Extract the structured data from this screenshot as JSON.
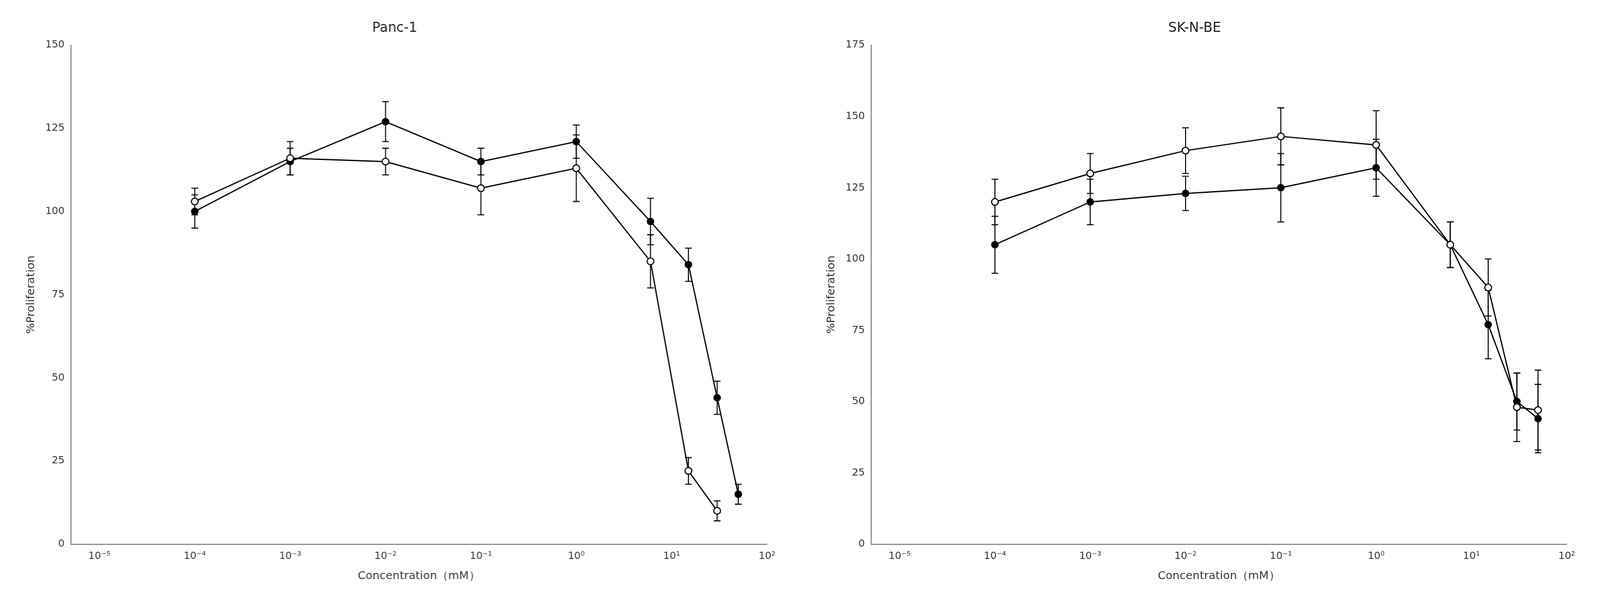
{
  "chart_data": [
    {
      "type": "line",
      "title": "Panc-1",
      "xlabel": "Concentration（mM）",
      "ylabel": "%Proliferation",
      "x": [
        0.0001,
        0.001,
        0.01,
        0.1,
        1.0,
        6.0,
        15.0,
        30.0,
        50.0
      ],
      "series": [
        {
          "color": "#000000",
          "marker": "open_circle",
          "line_style": "solid",
          "values": [
            103,
            116,
            115,
            107,
            113,
            85,
            22,
            10,
            null
          ],
          "yerr": [
            4,
            5,
            4,
            8,
            10,
            8,
            4,
            3,
            null
          ]
        },
        {
          "color": "#000000",
          "marker": "filled_circle",
          "line_style": "solid",
          "values": [
            100,
            115,
            127,
            115,
            121,
            97,
            84,
            44,
            15
          ],
          "yerr": [
            5,
            4,
            6,
            4,
            5,
            7,
            5,
            5,
            3
          ]
        }
      ],
      "log": "x",
      "xlim": [
        5e-06,
        100.0
      ],
      "xticks": [
        {
          "value": 1e-05,
          "label": "10⁻⁵"
        },
        {
          "value": 0.0001,
          "label": "10⁻⁴"
        },
        {
          "value": 0.001,
          "label": "10⁻³"
        },
        {
          "value": 0.01,
          "label": "10⁻²"
        },
        {
          "value": 0.1,
          "label": "10⁻¹"
        },
        {
          "value": 1.0,
          "label": "10⁰"
        },
        {
          "value": 10.0,
          "label": "10¹"
        },
        {
          "value": 100.0,
          "label": "10²"
        }
      ],
      "ylim": [
        0,
        150
      ],
      "yticks": [
        0,
        25,
        50,
        75,
        100,
        125,
        150
      ],
      "grid": false
    },
    {
      "type": "line",
      "title": "SK-N-BE",
      "xlabel": "Concentration（mM）",
      "ylabel": "%Proliferation",
      "x": [
        0.0001,
        0.001,
        0.01,
        0.1,
        1.0,
        6.0,
        15.0,
        30.0,
        50.0
      ],
      "series": [
        {
          "color": "#000000",
          "marker": "open_circle",
          "line_style": "solid",
          "values": [
            120,
            130,
            138,
            143,
            140,
            105,
            90,
            48,
            47
          ],
          "yerr": [
            8,
            7,
            8,
            10,
            12,
            8,
            10,
            12,
            14
          ]
        },
        {
          "color": "#000000",
          "marker": "filled_circle",
          "line_style": "solid",
          "values": [
            105,
            120,
            123,
            125,
            132,
            105,
            77,
            50,
            44
          ],
          "yerr": [
            10,
            8,
            6,
            12,
            10,
            8,
            12,
            10,
            12
          ]
        }
      ],
      "log": "x",
      "xlim": [
        5e-06,
        100.0
      ],
      "xticks": [
        {
          "value": 1e-05,
          "label": "10⁻⁵"
        },
        {
          "value": 0.0001,
          "label": "10⁻⁴"
        },
        {
          "value": 0.001,
          "label": "10⁻³"
        },
        {
          "value": 0.01,
          "label": "10⁻²"
        },
        {
          "value": 0.1,
          "label": "10⁻¹"
        },
        {
          "value": 1.0,
          "label": "10⁰"
        },
        {
          "value": 10.0,
          "label": "10¹"
        },
        {
          "value": 100.0,
          "label": "10²"
        }
      ],
      "ylim": [
        0,
        175
      ],
      "yticks": [
        0,
        25,
        50,
        75,
        100,
        125,
        150,
        175
      ],
      "grid": false
    }
  ]
}
